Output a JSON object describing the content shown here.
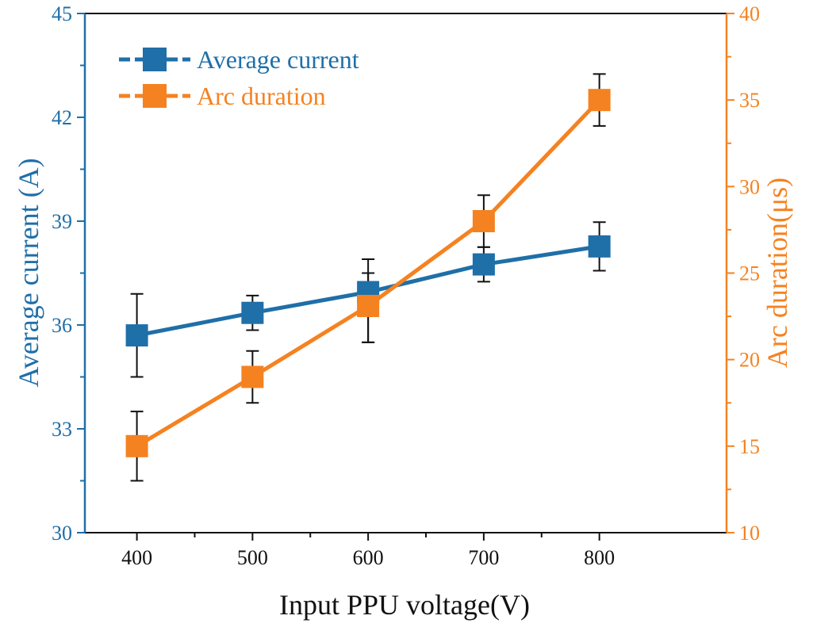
{
  "chart_data": {
    "type": "line",
    "x": [
      400,
      500,
      600,
      700,
      800
    ],
    "xlabel": "Input PPU voltage(V)",
    "xlim": [
      355,
      910
    ],
    "x_ticks": [
      "400",
      "500",
      "600",
      "700",
      "800"
    ],
    "y_left": {
      "label": "Average current (A)",
      "lim": [
        30,
        45
      ],
      "ticks": [
        "30",
        "33",
        "36",
        "39",
        "42",
        "45"
      ],
      "color": "#1f6fa8"
    },
    "y_right": {
      "label": "Arc duration(μs)",
      "lim": [
        10,
        40
      ],
      "ticks": [
        "10",
        "15",
        "20",
        "25",
        "30",
        "35",
        "40"
      ],
      "color": "#f58220"
    },
    "series": [
      {
        "name": "Average current",
        "axis": "left",
        "color": "#1f6fa8",
        "values": [
          35.7,
          36.35,
          36.95,
          37.75,
          38.27
        ],
        "err_low": [
          34.5,
          35.85,
          35.5,
          37.25,
          37.57
        ],
        "err_high": [
          36.9,
          36.85,
          37.9,
          38.25,
          38.97
        ]
      },
      {
        "name": "Arc duration",
        "axis": "right",
        "color": "#f58220",
        "values": [
          15.0,
          19.0,
          23.1,
          28.0,
          35.0
        ],
        "err_low": [
          13.0,
          17.5,
          21.0,
          26.5,
          33.5
        ],
        "err_high": [
          17.0,
          20.5,
          25.0,
          29.5,
          36.5
        ]
      }
    ],
    "legend": "top-left"
  }
}
